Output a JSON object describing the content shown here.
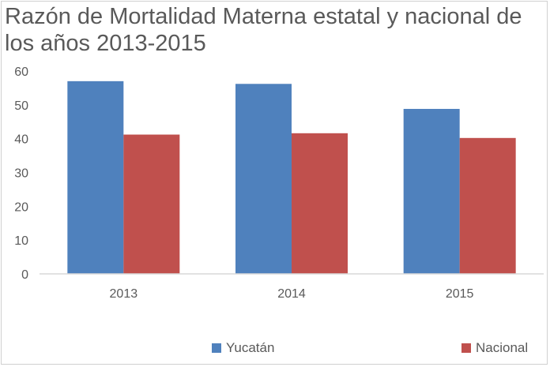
{
  "chart_data": {
    "type": "bar",
    "title": "Razón de Mortalidad Materna estatal y nacional de los años 2013-2015",
    "categories": [
      "2013",
      "2014",
      "2015"
    ],
    "series": [
      {
        "name": "Yucatán",
        "values": [
          57.0,
          56.2,
          48.8
        ],
        "color": "#4f81bd"
      },
      {
        "name": "Nacional",
        "values": [
          41.2,
          41.6,
          40.2
        ],
        "color": "#c0504d"
      }
    ],
    "xlabel": "",
    "ylabel": "",
    "ylim": [
      0,
      60
    ],
    "yticks": [
      0,
      10,
      20,
      30,
      40,
      50,
      60
    ],
    "grid": false,
    "legend_position": "bottom"
  }
}
